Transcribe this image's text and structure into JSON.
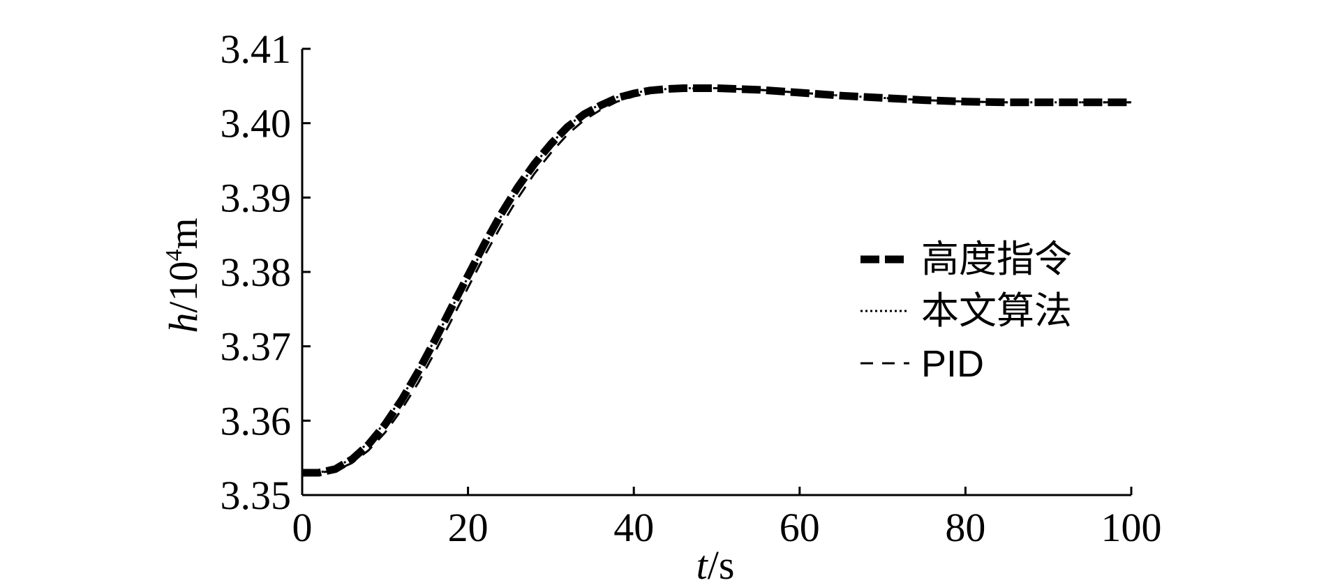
{
  "chart_data": {
    "type": "line",
    "xlabel": {
      "var": "t",
      "unit": "/s"
    },
    "ylabel": {
      "var": "h",
      "unit_pre": "/10",
      "unit_exp": "4",
      "unit_post": "m"
    },
    "xlim": [
      0,
      100
    ],
    "ylim": [
      3.35,
      3.41
    ],
    "x_ticks": [
      "0",
      "20",
      "40",
      "60",
      "80",
      "100"
    ],
    "y_ticks": [
      "3.35",
      "3.36",
      "3.37",
      "3.38",
      "3.39",
      "3.40",
      "3.41"
    ],
    "grid": false,
    "legend_position": "right",
    "series": [
      {
        "name": "高度指令",
        "style": "dash-thick",
        "x": [
          0,
          2,
          4,
          6,
          8,
          10,
          12,
          14,
          16,
          18,
          20,
          22,
          24,
          26,
          28,
          30,
          32,
          34,
          36,
          38,
          40,
          42,
          44,
          46,
          48,
          50,
          55,
          60,
          65,
          70,
          75,
          80,
          85,
          90,
          95,
          100
        ],
        "y": [
          3.353,
          3.353,
          3.3535,
          3.3548,
          3.3568,
          3.3595,
          3.3628,
          3.3666,
          3.3708,
          3.3752,
          3.3795,
          3.3838,
          3.3878,
          3.3914,
          3.3945,
          3.3972,
          3.3995,
          3.4012,
          3.4024,
          3.4034,
          3.404,
          3.4044,
          3.4046,
          3.4047,
          3.4047,
          3.4047,
          3.4045,
          3.4041,
          3.4037,
          3.4034,
          3.4031,
          3.4029,
          3.4028,
          3.4028,
          3.4028,
          3.4028
        ]
      },
      {
        "name": "本文算法",
        "style": "dotted",
        "x": [
          0,
          2,
          4,
          6,
          8,
          10,
          12,
          14,
          16,
          18,
          20,
          22,
          24,
          26,
          28,
          30,
          32,
          34,
          36,
          38,
          40,
          42,
          44,
          46,
          48,
          50,
          55,
          60,
          65,
          70,
          75,
          80,
          85,
          90,
          95,
          100
        ],
        "y": [
          3.353,
          3.353,
          3.3536,
          3.355,
          3.3571,
          3.3598,
          3.3631,
          3.3668,
          3.3709,
          3.3751,
          3.3793,
          3.3835,
          3.3875,
          3.3911,
          3.3944,
          3.3972,
          3.3996,
          3.4013,
          3.4026,
          3.4035,
          3.4041,
          3.4044,
          3.4046,
          3.4047,
          3.4047,
          3.4047,
          3.4045,
          3.4041,
          3.4037,
          3.4034,
          3.4031,
          3.4029,
          3.4028,
          3.4028,
          3.4028,
          3.4028
        ]
      },
      {
        "name": "PID",
        "style": "dash-thin",
        "x": [
          0,
          2,
          4,
          6,
          8,
          10,
          12,
          14,
          16,
          18,
          20,
          22,
          24,
          26,
          28,
          30,
          32,
          34,
          36,
          38,
          40,
          42,
          44,
          46,
          48,
          50,
          55,
          60,
          65,
          70,
          75,
          80,
          85,
          90,
          95,
          100
        ],
        "y": [
          3.353,
          3.353,
          3.3533,
          3.3543,
          3.356,
          3.3584,
          3.3615,
          3.3651,
          3.3692,
          3.3735,
          3.3779,
          3.3822,
          3.3862,
          3.3899,
          3.3932,
          3.396,
          3.3985,
          3.4004,
          3.4018,
          3.4029,
          3.4036,
          3.4041,
          3.4044,
          3.4046,
          3.4047,
          3.4047,
          3.4045,
          3.4041,
          3.4037,
          3.4034,
          3.4031,
          3.4029,
          3.4028,
          3.4028,
          3.4028,
          3.4028
        ]
      }
    ]
  }
}
